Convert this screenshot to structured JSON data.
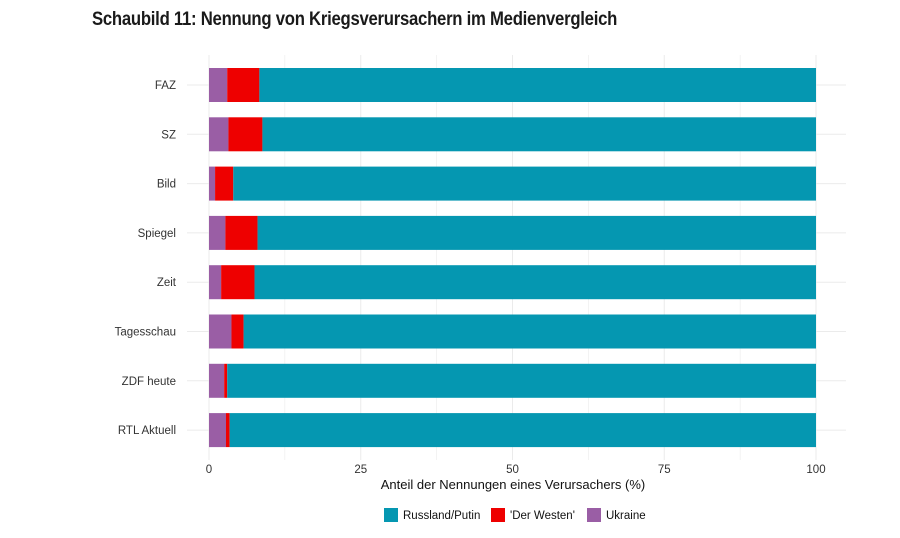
{
  "title": "Schaubild 11: Nennung von Kriegsverursachern im Medienvergleich",
  "colors": {
    "Russland/Putin": "#0597b1",
    "'Der Westen'": "#ee0000",
    "Ukraine": "#9a5ea5",
    "grid": "#ebebeb"
  },
  "chart_data": {
    "type": "bar",
    "orientation": "horizontal",
    "stacked": true,
    "title": "Schaubild 11: Nennung von Kriegsverursachern im Medienvergleich",
    "xlabel": "Anteil der Nennungen eines Verursachers (%)",
    "ylabel": "",
    "xlim": [
      0,
      100
    ],
    "xticks": [
      0,
      25,
      50,
      75,
      100
    ],
    "grid": true,
    "legend_position": "bottom",
    "categories": [
      "FAZ",
      "SZ",
      "Bild",
      "Spiegel",
      "Zeit",
      "Tagesschau",
      "ZDF heute",
      "RTL Aktuell"
    ],
    "series": [
      {
        "name": "Ukraine",
        "values": [
          3.0,
          3.2,
          1.0,
          2.7,
          2.0,
          3.7,
          2.5,
          2.8
        ]
      },
      {
        "name": "'Der Westen'",
        "values": [
          5.3,
          5.6,
          3.0,
          5.3,
          5.5,
          2.0,
          0.5,
          0.6
        ]
      },
      {
        "name": "Russland/Putin",
        "values": [
          91.7,
          91.2,
          96.0,
          92.0,
          92.5,
          94.3,
          97.0,
          96.6
        ]
      }
    ],
    "legend": [
      "Russland/Putin",
      "'Der Westen'",
      "Ukraine"
    ]
  }
}
